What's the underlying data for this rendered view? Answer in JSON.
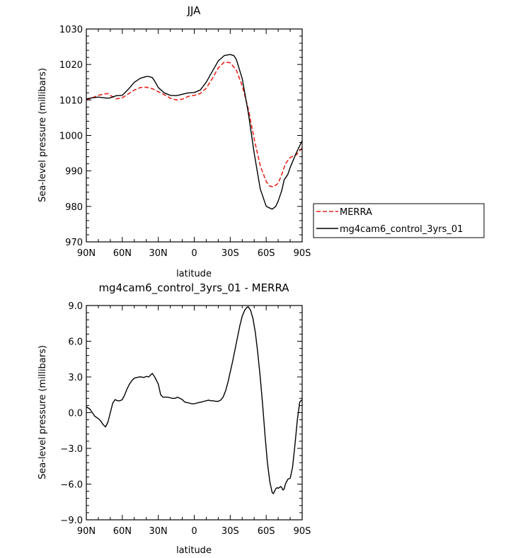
{
  "chart_data": [
    {
      "type": "line",
      "title": "JJA",
      "xlabel": "latitude",
      "ylabel": "Sea-level pressure (millibars)",
      "xlim": [
        90,
        -90
      ],
      "ylim": [
        970,
        1030
      ],
      "x_ticks": [
        90,
        60,
        30,
        0,
        -30,
        -60,
        -90
      ],
      "x_tick_labels": [
        "90N",
        "60N",
        "30N",
        "0",
        "30S",
        "60S",
        "90S"
      ],
      "y_ticks": [
        970,
        980,
        990,
        1000,
        1010,
        1020,
        1030
      ],
      "y_tick_labels": [
        "970",
        "980",
        "990",
        "1000",
        "1010",
        "1020",
        "1030"
      ],
      "grid": false,
      "legend": {
        "placement": "right",
        "entries": [
          "MERRA",
          "mg4cam6_control_3yrs_01"
        ]
      },
      "series": [
        {
          "name": "MERRA",
          "color": "#e8251c",
          "dash": true,
          "x": [
            90,
            85,
            80,
            75,
            72,
            70,
            65,
            60,
            55,
            50,
            45,
            40,
            35,
            30,
            25,
            20,
            15,
            10,
            5,
            0,
            -5,
            -10,
            -15,
            -20,
            -25,
            -30,
            -35,
            -40,
            -45,
            -50,
            -55,
            -60,
            -63,
            -66,
            -70,
            -73,
            -76,
            -80,
            -85,
            -90
          ],
          "y": [
            1010.0,
            1010.6,
            1011.3,
            1011.7,
            1011.8,
            1011.3,
            1010.3,
            1010.6,
            1011.7,
            1012.8,
            1013.5,
            1013.6,
            1013.2,
            1012.3,
            1011.5,
            1010.5,
            1010.0,
            1010.2,
            1011.0,
            1011.3,
            1011.8,
            1013.3,
            1016.0,
            1019.0,
            1020.7,
            1020.5,
            1018.5,
            1014.0,
            1007.5,
            999.0,
            991.5,
            987.0,
            985.7,
            985.5,
            986.5,
            989.0,
            992.0,
            993.8,
            994.5,
            996.5
          ]
        },
        {
          "name": "mg4cam6_control_3yrs_01",
          "color": "#000000",
          "dash": false,
          "x": [
            90,
            85,
            80,
            75,
            72,
            70,
            65,
            60,
            55,
            50,
            45,
            42,
            40,
            38,
            35,
            33,
            30,
            25,
            20,
            15,
            10,
            5,
            0,
            -5,
            -10,
            -15,
            -20,
            -25,
            -30,
            -33,
            -35,
            -40,
            -45,
            -50,
            -55,
            -60,
            -65,
            -68,
            -70,
            -73,
            -75,
            -78,
            -80,
            -85,
            -90
          ],
          "y": [
            1010.3,
            1010.6,
            1010.8,
            1010.6,
            1010.5,
            1010.6,
            1011.2,
            1011.3,
            1013.0,
            1015.0,
            1016.1,
            1016.4,
            1016.6,
            1016.6,
            1016.3,
            1015.3,
            1013.5,
            1012.0,
            1011.3,
            1011.2,
            1011.6,
            1012.0,
            1012.1,
            1012.8,
            1015.0,
            1018.0,
            1021.0,
            1022.5,
            1022.8,
            1022.5,
            1021.5,
            1016.0,
            1006.5,
            995.0,
            985.0,
            980.0,
            979.2,
            980.0,
            981.5,
            984.5,
            987.5,
            989.0,
            991.0,
            995.0,
            998.5
          ]
        }
      ]
    },
    {
      "type": "line",
      "title": "mg4cam6_control_3yrs_01 - MERRA",
      "xlabel": "latitude",
      "ylabel": "Sea-level pressure (millibars)",
      "xlim": [
        90,
        -90
      ],
      "ylim": [
        -9,
        9
      ],
      "x_ticks": [
        90,
        60,
        30,
        0,
        -30,
        -60,
        -90
      ],
      "x_tick_labels": [
        "90N",
        "60N",
        "30N",
        "0",
        "30S",
        "60S",
        "90S"
      ],
      "y_ticks": [
        -9,
        -6,
        -3,
        0,
        3,
        6,
        9
      ],
      "y_tick_labels": [
        "−9.0",
        "−6.0",
        "−3.0",
        "0.0",
        "3.0",
        "6.0",
        "9.0"
      ],
      "grid": false,
      "series": [
        {
          "color": "#000000",
          "dash": false,
          "x": [
            90,
            87,
            85,
            83,
            80,
            78,
            76,
            74,
            72,
            70,
            68,
            66,
            64,
            62,
            60,
            58,
            56,
            54,
            52,
            50,
            48,
            46,
            44,
            42,
            40,
            38,
            36,
            35,
            33,
            31,
            30,
            28,
            26,
            24,
            22,
            20,
            18,
            16,
            14,
            12,
            10,
            8,
            6,
            4,
            2,
            0,
            -2,
            -4,
            -6,
            -8,
            -10,
            -12,
            -14,
            -16,
            -18,
            -20,
            -22,
            -24,
            -26,
            -28,
            -30,
            -32,
            -35,
            -38,
            -40,
            -42,
            -44,
            -45,
            -47,
            -49,
            -51,
            -53,
            -55,
            -57,
            -59,
            -61,
            -63,
            -65,
            -66,
            -67,
            -68,
            -69,
            -70,
            -71,
            -72,
            -73,
            -74,
            -75,
            -76,
            -77,
            -78,
            -80,
            -82,
            -84,
            -86,
            -88,
            -90
          ],
          "y": [
            0.5,
            0.3,
            0.0,
            -0.3,
            -0.5,
            -0.7,
            -1.0,
            -1.2,
            -0.8,
            0.0,
            0.8,
            1.1,
            1.0,
            1.0,
            1.1,
            1.5,
            2.0,
            2.4,
            2.7,
            2.9,
            2.95,
            3.0,
            3.0,
            2.95,
            3.05,
            3.0,
            3.2,
            3.3,
            3.0,
            2.6,
            2.4,
            1.5,
            1.3,
            1.3,
            1.3,
            1.25,
            1.2,
            1.2,
            1.3,
            1.2,
            1.1,
            0.9,
            0.85,
            0.8,
            0.75,
            0.75,
            0.8,
            0.85,
            0.9,
            0.95,
            1.0,
            1.05,
            1.0,
            1.0,
            0.95,
            0.95,
            1.05,
            1.3,
            1.8,
            2.5,
            3.4,
            4.3,
            5.8,
            7.3,
            8.1,
            8.6,
            8.85,
            8.9,
            8.6,
            7.9,
            6.7,
            5.0,
            3.0,
            0.7,
            -1.9,
            -4.2,
            -5.8,
            -6.7,
            -6.8,
            -6.6,
            -6.4,
            -6.3,
            -6.35,
            -6.3,
            -6.2,
            -6.3,
            -6.5,
            -6.4,
            -6.0,
            -5.8,
            -5.6,
            -5.5,
            -4.6,
            -2.7,
            -0.6,
            0.9,
            1.1
          ]
        }
      ]
    }
  ]
}
